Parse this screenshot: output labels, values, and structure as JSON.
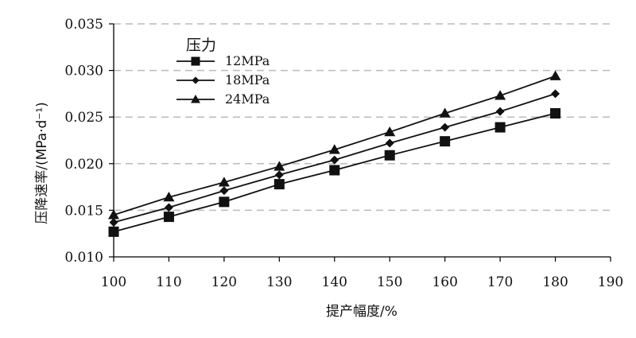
{
  "chart_data": {
    "type": "line",
    "xlabel": "提产幅度/%",
    "ylabel": "压降速率/(MPa·d⁻¹)",
    "xlim": [
      100,
      190
    ],
    "ylim": [
      0.01,
      0.035
    ],
    "x_ticks": [
      "100",
      "110",
      "120",
      "130",
      "140",
      "150",
      "160",
      "170",
      "180",
      "190"
    ],
    "y_ticks": [
      "0.010",
      "0.015",
      "0.020",
      "0.025",
      "0.030",
      "0.035"
    ],
    "grid": "horizontal-dashed",
    "legend": {
      "title": "压力",
      "placement": "top-left"
    },
    "x": [
      100,
      110,
      120,
      130,
      140,
      150,
      160,
      170,
      180
    ],
    "series": [
      {
        "name": "12MPa",
        "marker": "square",
        "values": [
          0.0127,
          0.0143,
          0.0159,
          0.0178,
          0.0193,
          0.0209,
          0.0224,
          0.0239,
          0.0254
        ]
      },
      {
        "name": "18MPa",
        "marker": "diamond",
        "values": [
          0.0137,
          0.0153,
          0.0171,
          0.0188,
          0.0204,
          0.0222,
          0.0239,
          0.0256,
          0.0275
        ]
      },
      {
        "name": "24MPa",
        "marker": "triangle",
        "values": [
          0.0145,
          0.0164,
          0.018,
          0.0197,
          0.0215,
          0.0234,
          0.0254,
          0.0273,
          0.0294
        ]
      }
    ],
    "colors": {
      "line": "#111111",
      "grid": "#bbbbbb",
      "axis": "#000000"
    }
  }
}
